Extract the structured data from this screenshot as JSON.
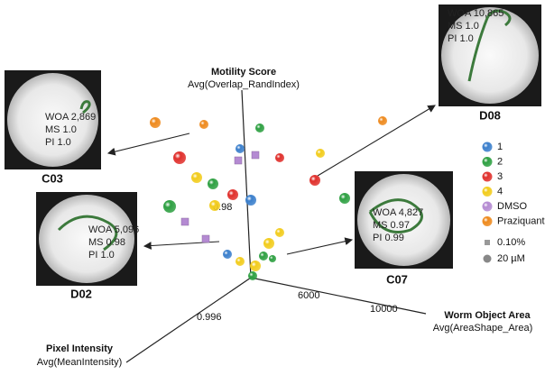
{
  "axes": {
    "motility": {
      "title": "Motility Score",
      "subtitle": "Avg(Overlap_RandIndex)",
      "tick": "0.98"
    },
    "area": {
      "title": "Worm Object Area",
      "subtitle": "Avg(AreaShape_Area)",
      "ticks": [
        "6000",
        "10000"
      ]
    },
    "intensity": {
      "title": "Pixel Intensity",
      "subtitle": "Avg(MeanIntensity)",
      "tick": "0.996"
    }
  },
  "insets": [
    {
      "well": "C03",
      "lines": [
        "WOA 2,869",
        "MS 1.0",
        "PI 1.0"
      ]
    },
    {
      "well": "D08",
      "lines": [
        "WOA 10,865",
        "MS 1.0",
        "PI 1.0"
      ]
    },
    {
      "well": "D02",
      "lines": [
        "WOA 5,096",
        "MS 0.98",
        "PI 1.0"
      ]
    },
    {
      "well": "C07",
      "lines": [
        "WOA 4,827",
        "MS 0.97",
        "PI 0.99"
      ]
    }
  ],
  "legend": {
    "groups": [
      {
        "label": "1",
        "color": "#3b7fcc"
      },
      {
        "label": "2",
        "color": "#2ea042"
      },
      {
        "label": "3",
        "color": "#e0302c"
      },
      {
        "label": "4",
        "color": "#f2cc1c"
      },
      {
        "label": "DMSO",
        "color": "#b48ad2"
      },
      {
        "label": "Praziquantel",
        "color": "#ee8a1e"
      }
    ],
    "sizes": [
      "0.10%",
      "20 µM"
    ]
  }
}
